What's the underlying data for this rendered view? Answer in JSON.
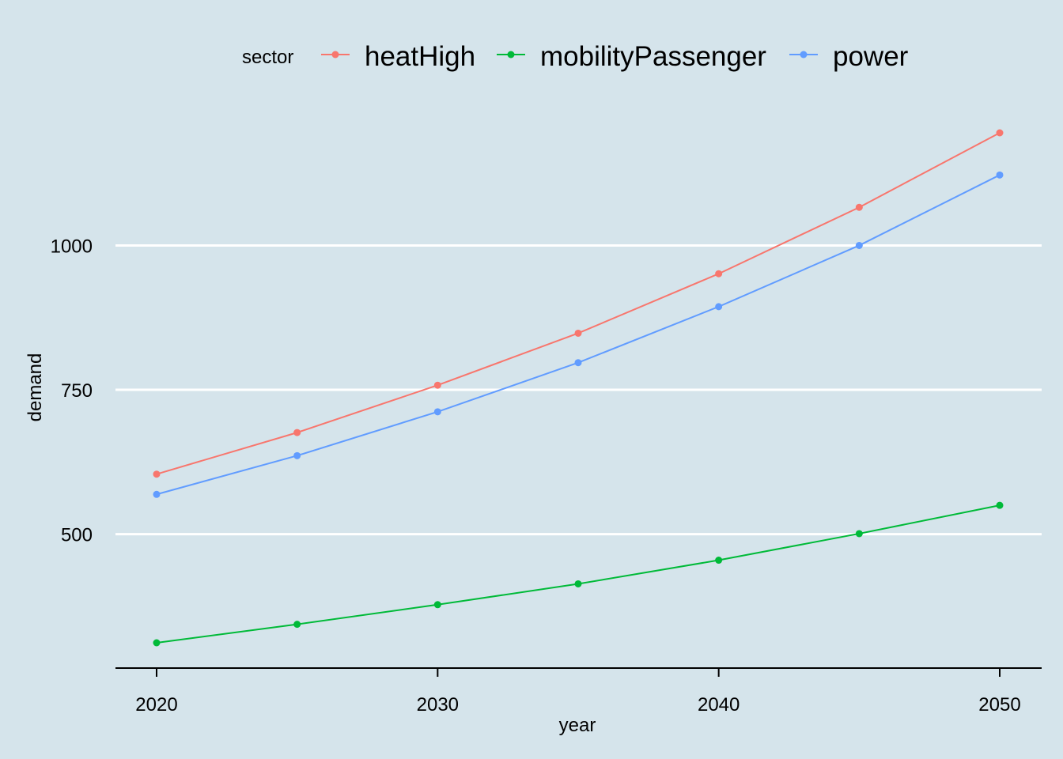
{
  "chart_data": {
    "type": "line",
    "title": "",
    "xlabel": "year",
    "ylabel": "demand",
    "x": [
      2020,
      2025,
      2030,
      2035,
      2040,
      2045,
      2050
    ],
    "xlim": [
      2020,
      2050
    ],
    "ylim": [
      312,
      1195
    ],
    "xticks": [
      2020,
      2030,
      2040,
      2050
    ],
    "yticks": [
      500,
      750,
      1000
    ],
    "grid": {
      "horizontal": true,
      "vertical": false
    },
    "legend": {
      "title": "sector",
      "placement": "top"
    },
    "series": [
      {
        "name": "heatHigh",
        "color": "#f8766d",
        "values": [
          604,
          676,
          758,
          848,
          951,
          1066,
          1195
        ]
      },
      {
        "name": "mobilityPassenger",
        "color": "#00ba38",
        "values": [
          312,
          344,
          378,
          414,
          455,
          501,
          550
        ]
      },
      {
        "name": "power",
        "color": "#619cff",
        "values": [
          569,
          636,
          712,
          797,
          894,
          1000,
          1122
        ]
      }
    ]
  }
}
